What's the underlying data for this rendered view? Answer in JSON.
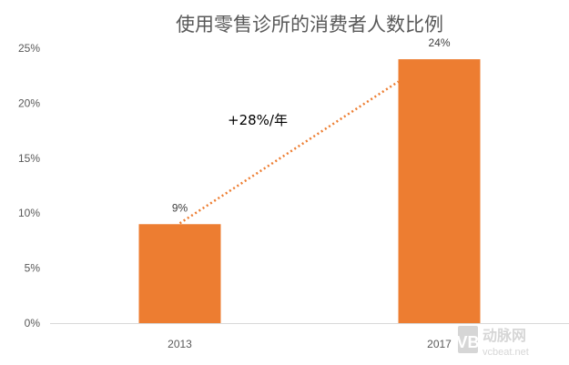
{
  "chart_data": {
    "type": "bar",
    "title": "使用零售诊所的消费者人数比例",
    "categories": [
      "2013",
      "2017"
    ],
    "values": [
      9,
      24
    ],
    "data_labels": [
      "9%",
      "24%"
    ],
    "ylim": [
      0,
      25
    ],
    "yticks": [
      0,
      5,
      10,
      15,
      20,
      25
    ],
    "ytick_labels": [
      "0%",
      "5%",
      "10%",
      "15%",
      "20%",
      "25%"
    ],
    "xlabel": "",
    "ylabel": "",
    "grid": false,
    "bar_color": "#ED7D31",
    "trendline": {
      "style": "dotted",
      "color": "#ED7D31",
      "annotation": "+28%/年"
    }
  },
  "watermark": {
    "logo_text": "动脉网",
    "site": "vcbeat.net"
  }
}
